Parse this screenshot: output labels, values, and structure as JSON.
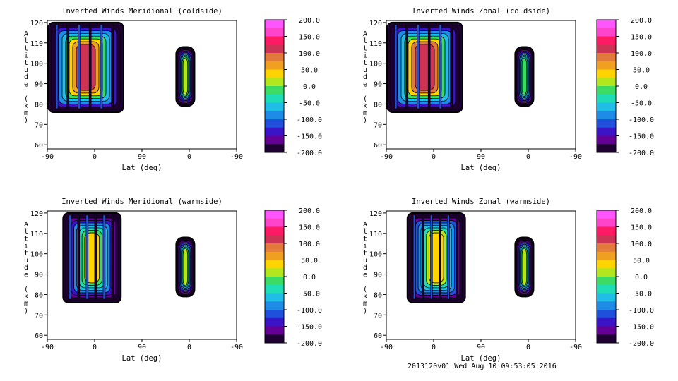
{
  "colorbar": {
    "ticks": [
      "200.0",
      "150.0",
      "100.0",
      "50.0",
      "0.0",
      "-50.0",
      "-100.0",
      "-150.0",
      "-200.0"
    ],
    "colors": [
      "#ff55ff",
      "#ff44cc",
      "#ff1a66",
      "#cc3355",
      "#e27a3c",
      "#f0a020",
      "#ffd400",
      "#b4e61e",
      "#3cdc64",
      "#1edcb4",
      "#1ebee6",
      "#1e8ce6",
      "#1e50dc",
      "#3c14c8",
      "#640096",
      "#1e0032"
    ]
  },
  "footer": "2013120v01 Wed Aug 10 09:53:05 2016",
  "chart_data": [
    {
      "type": "heatmap",
      "title": "Inverted Winds Meridional (coldside)",
      "xlabel": "Lat (deg)",
      "ylabel": "Altitude (km)",
      "xticks": [
        "-90",
        "0",
        "90",
        "0",
        "-90"
      ],
      "yticks": [
        "60",
        "70",
        "80",
        "90",
        "100",
        "110",
        "120"
      ],
      "ylim": [
        58,
        121
      ],
      "color_range": [
        -200,
        200
      ],
      "series": [
        {
          "lat_range": [
            -100,
            55
          ],
          "alt_range": [
            76,
            120
          ],
          "peak": 150
        },
        {
          "lat_range": [
            -10,
            25
          ],
          "alt_range": [
            79,
            108
          ],
          "peak": 40
        }
      ]
    },
    {
      "type": "heatmap",
      "title": "Inverted Winds Zonal (coldside)",
      "xlabel": "Lat (deg)",
      "ylabel": "Altitude (km)",
      "xticks": [
        "-90",
        "0",
        "90",
        "0",
        "-90"
      ],
      "yticks": [
        "60",
        "70",
        "80",
        "90",
        "100",
        "110",
        "120"
      ],
      "ylim": [
        58,
        121
      ],
      "color_range": [
        -200,
        200
      ],
      "series": [
        {
          "lat_range": [
            -100,
            55
          ],
          "alt_range": [
            76,
            120
          ],
          "peak": 160
        },
        {
          "lat_range": [
            -10,
            25
          ],
          "alt_range": [
            79,
            108
          ],
          "peak": 20
        }
      ]
    },
    {
      "type": "heatmap",
      "title": "Inverted Winds Meridional (warmside)",
      "xlabel": "Lat (deg)",
      "ylabel": "Altitude (km)",
      "xticks": [
        "-90",
        "0",
        "90",
        "0",
        "-90"
      ],
      "yticks": [
        "60",
        "70",
        "80",
        "90",
        "100",
        "110",
        "120"
      ],
      "ylim": [
        58,
        121
      ],
      "color_range": [
        -200,
        200
      ],
      "series": [
        {
          "lat_range": [
            -60,
            50
          ],
          "alt_range": [
            76,
            120
          ],
          "peak": 60
        },
        {
          "lat_range": [
            -10,
            25
          ],
          "alt_range": [
            79,
            108
          ],
          "peak": 30
        }
      ]
    },
    {
      "type": "heatmap",
      "title": "Inverted Winds Zonal (warmside)",
      "xlabel": "Lat (deg)",
      "ylabel": "Altitude (km)",
      "xticks": [
        "-90",
        "0",
        "90",
        "0",
        "-90"
      ],
      "yticks": [
        "60",
        "70",
        "80",
        "90",
        "100",
        "110",
        "120"
      ],
      "ylim": [
        58,
        121
      ],
      "color_range": [
        -200,
        200
      ],
      "series": [
        {
          "lat_range": [
            -50,
            60
          ],
          "alt_range": [
            76,
            120
          ],
          "peak": 70
        },
        {
          "lat_range": [
            -10,
            25
          ],
          "alt_range": [
            79,
            108
          ],
          "peak": 30
        }
      ]
    }
  ]
}
